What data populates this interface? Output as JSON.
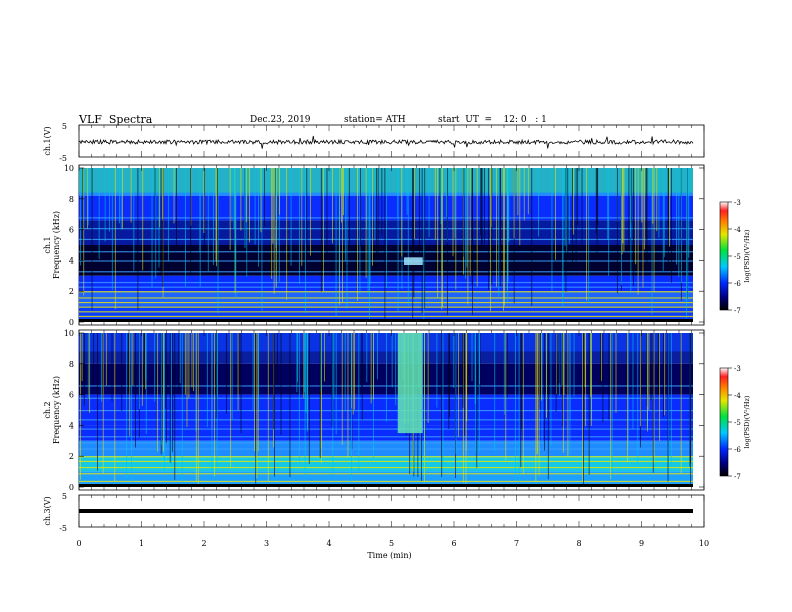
{
  "header": {
    "title": "VLF  Spectra",
    "date": "Dec.23, 2019",
    "station": "station= ATH",
    "start": "start  UT  =    12: 0   : 1"
  },
  "chart_data": [
    {
      "type": "line",
      "panel": "ch1-waveform",
      "ylabel": "ch.1(V)",
      "ylim": [
        -5,
        5
      ],
      "yticks": [
        "5",
        "-5"
      ],
      "xlim": [
        0,
        10
      ]
    },
    {
      "type": "heatmap",
      "panel": "ch1-spectrogram",
      "ylabel": "ch.1\nFrequency  (kHz)",
      "ylabel_line1": "ch.1",
      "ylabel_line2": "Frequency  (kHz)",
      "ylim": [
        0,
        10
      ],
      "yticks": [
        "0",
        "2",
        "4",
        "6",
        "8",
        "10"
      ],
      "xlim": [
        0,
        10
      ],
      "colorbar": {
        "label": "log(PSD)(V²/Hz)",
        "range": [
          -7,
          -3
        ],
        "ticks": [
          "-3",
          "-4",
          "-5",
          "-6",
          "-7"
        ]
      },
      "features": [
        {
          "name": "broadband burst",
          "t_start": 5.2,
          "t_end": 5.5,
          "f_low": 3.7,
          "f_high": 4.2
        }
      ]
    },
    {
      "type": "heatmap",
      "panel": "ch2-spectrogram",
      "ylabel_line1": "ch.2",
      "ylabel_line2": "Frequency  (kHz)",
      "ylim": [
        0,
        10
      ],
      "yticks": [
        "0",
        "2",
        "4",
        "6",
        "8",
        "10"
      ],
      "xlim": [
        0,
        10
      ],
      "colorbar": {
        "label": "log(PSD)(V²/Hz)",
        "range": [
          -7,
          -3
        ],
        "ticks": [
          "-3",
          "-4",
          "-5",
          "-6",
          "-7"
        ]
      },
      "features": [
        {
          "name": "broadband burst",
          "t_start": 5.1,
          "t_end": 5.5,
          "f_low": 3.5,
          "f_high": 10
        }
      ]
    },
    {
      "type": "line",
      "panel": "ch3-waveform",
      "ylabel": "ch.3(V)",
      "ylim": [
        -5,
        5
      ],
      "yticks": [
        "5",
        "-5"
      ],
      "xlim": [
        0,
        10
      ],
      "xlabel": "Time  (min)",
      "xticks": [
        "0",
        "1",
        "2",
        "3",
        "4",
        "5",
        "6",
        "7",
        "8",
        "9",
        "10"
      ],
      "constant_value": 0
    }
  ],
  "colors": {
    "black": "#000000",
    "navy": "#00007a",
    "blue": "#0a2cff",
    "cyan": "#00c8e6",
    "green": "#28e628",
    "yellow": "#e6e600",
    "red": "#ff2020",
    "white": "#ffffff"
  }
}
